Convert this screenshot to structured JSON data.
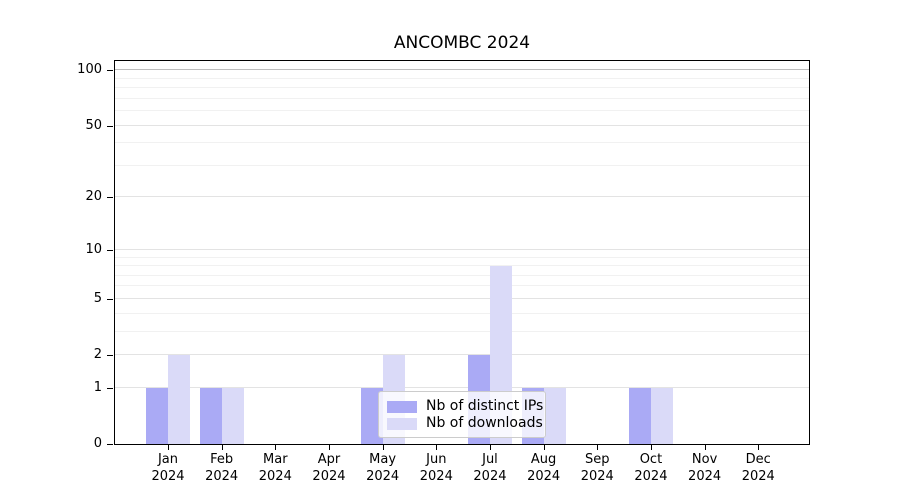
{
  "chart_data": {
    "type": "bar",
    "title": "ANCOMBC 2024",
    "categories": [
      {
        "month": "Jan",
        "year": "2024"
      },
      {
        "month": "Feb",
        "year": "2024"
      },
      {
        "month": "Mar",
        "year": "2024"
      },
      {
        "month": "Apr",
        "year": "2024"
      },
      {
        "month": "May",
        "year": "2024"
      },
      {
        "month": "Jun",
        "year": "2024"
      },
      {
        "month": "Jul",
        "year": "2024"
      },
      {
        "month": "Aug",
        "year": "2024"
      },
      {
        "month": "Sep",
        "year": "2024"
      },
      {
        "month": "Oct",
        "year": "2024"
      },
      {
        "month": "Nov",
        "year": "2024"
      },
      {
        "month": "Dec",
        "year": "2024"
      }
    ],
    "series": [
      {
        "name": "Nb of distinct IPs",
        "color": "#aaaaf5",
        "values": [
          1,
          1,
          0,
          0,
          1,
          0,
          2,
          1,
          0,
          1,
          0,
          0
        ]
      },
      {
        "name": "Nb of downloads",
        "color": "#dadaf8",
        "values": [
          2,
          1,
          0,
          0,
          2,
          0,
          8,
          1,
          0,
          1,
          0,
          0
        ]
      }
    ],
    "y_axis": {
      "scale": "log1p",
      "ylim": [
        0,
        100
      ],
      "ticks": [
        0,
        1,
        2,
        5,
        10,
        20,
        50,
        100
      ],
      "minor_gridlines": [
        3,
        4,
        6,
        7,
        8,
        9,
        30,
        40,
        60,
        70,
        80,
        90
      ]
    },
    "legend": {
      "position": "bottom-center"
    }
  }
}
